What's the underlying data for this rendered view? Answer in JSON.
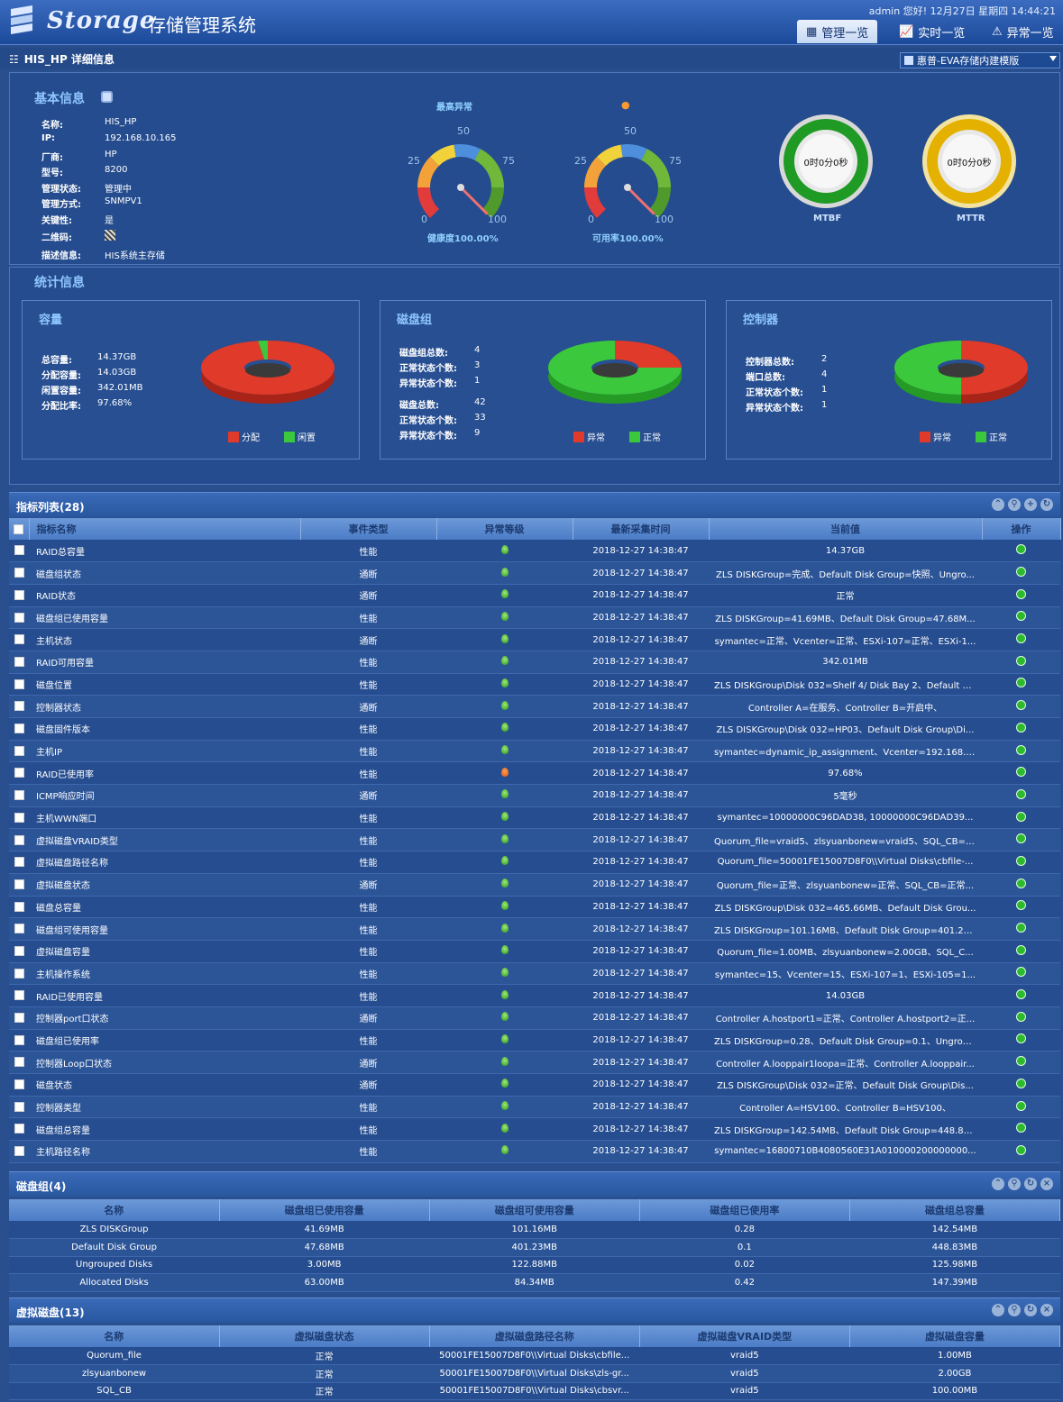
{
  "header": {
    "logo": "Storage",
    "title": "存储管理系统",
    "user_info": "admin 您好! 12月27日 星期四 14:44:21",
    "nav": [
      {
        "label": "管理一览",
        "icon": "keyboard-icon",
        "active": true
      },
      {
        "label": "实时一览",
        "icon": "line-chart-icon",
        "active": false
      },
      {
        "label": "异常一览",
        "icon": "warning-icon",
        "active": false
      }
    ]
  },
  "subbar": {
    "title": "HIS_HP 详细信息",
    "selector": "惠普-EVA存储内建模版"
  },
  "basic": {
    "title": "基本信息",
    "fields": [
      {
        "k": "名称:",
        "v": "HIS_HP"
      },
      {
        "k": "IP:",
        "v": "192.168.10.165"
      },
      {
        "k": "厂商:",
        "v": "HP"
      },
      {
        "k": "型号:",
        "v": "8200"
      },
      {
        "k": "管理状态:",
        "v": "管理中"
      },
      {
        "k": "管理方式:",
        "v": "SNMPV1"
      },
      {
        "k": "关键性:",
        "v": "是"
      },
      {
        "k": "二维码:",
        "v": ""
      },
      {
        "k": "描述信息:",
        "v": "HIS系统主存储"
      }
    ],
    "highest_alarm": "最高异常",
    "gauges": [
      {
        "label": "健康度100.00%",
        "value": 100,
        "ticks": [
          "0",
          "25",
          "50",
          "75",
          "100"
        ]
      },
      {
        "label": "可用率100.00%",
        "value": 100,
        "ticks": [
          "0",
          "25",
          "50",
          "75",
          "100"
        ]
      }
    ],
    "rings": [
      {
        "label": "MTBF",
        "text": "0时0分0秒",
        "color": "#2aa02a"
      },
      {
        "label": "MTTR",
        "text": "0时0分0秒",
        "color": "#e6b800"
      }
    ]
  },
  "stats": {
    "title": "统计信息",
    "capacity": {
      "title": "容量",
      "rows": [
        {
          "k": "总容量:",
          "v": "14.37GB"
        },
        {
          "k": "分配容量:",
          "v": "14.03GB"
        },
        {
          "k": "闲置容量:",
          "v": "342.01MB"
        },
        {
          "k": "分配比率:",
          "v": "97.68%"
        }
      ],
      "pie": [
        {
          "name": "分配",
          "value": 97.68,
          "color": "#e03a2a"
        },
        {
          "name": "闲置",
          "value": 2.32,
          "color": "#3cc83c"
        }
      ]
    },
    "diskgroup": {
      "title": "磁盘组",
      "rows": [
        {
          "k": "磁盘组总数:",
          "v": "4"
        },
        {
          "k": "正常状态个数:",
          "v": "3"
        },
        {
          "k": "异常状态个数:",
          "v": "1"
        },
        {
          "k": "磁盘总数:",
          "v": "42"
        },
        {
          "k": "正常状态个数:",
          "v": "33"
        },
        {
          "k": "异常状态个数:",
          "v": "9"
        }
      ],
      "pie": [
        {
          "name": "异常",
          "value": 25,
          "color": "#e03a2a"
        },
        {
          "name": "正常",
          "value": 75,
          "color": "#3cc83c"
        }
      ]
    },
    "controller": {
      "title": "控制器",
      "rows": [
        {
          "k": "控制器总数:",
          "v": "2"
        },
        {
          "k": "端口总数:",
          "v": "4"
        },
        {
          "k": "正常状态个数:",
          "v": "1"
        },
        {
          "k": "异常状态个数:",
          "v": "1"
        }
      ],
      "pie": [
        {
          "name": "异常",
          "value": 50,
          "color": "#e03a2a"
        },
        {
          "name": "正常",
          "value": 50,
          "color": "#3cc83c"
        }
      ]
    }
  },
  "metrics": {
    "title": "指标列表(28)",
    "columns": [
      "指标名称",
      "事件类型",
      "异常等级",
      "最新采集时间",
      "当前值",
      "操作"
    ],
    "rows": [
      [
        "RAID总容量",
        "性能",
        "g",
        "2018-12-27 14:38:47",
        "14.37GB"
      ],
      [
        "磁盘组状态",
        "通断",
        "g",
        "2018-12-27 14:38:47",
        "ZLS DISKGroup=完成、Default Disk Group=快照、Ungro..."
      ],
      [
        "RAID状态",
        "通断",
        "g",
        "2018-12-27 14:38:47",
        "正常"
      ],
      [
        "磁盘组已使用容量",
        "性能",
        "g",
        "2018-12-27 14:38:47",
        "ZLS DISKGroup=41.69MB、Default Disk Group=47.68M..."
      ],
      [
        "主机状态",
        "通断",
        "g",
        "2018-12-27 14:38:47",
        "symantec=正常、Vcenter=正常、ESXi-107=正常、ESXi-1..."
      ],
      [
        "RAID可用容量",
        "性能",
        "g",
        "2018-12-27 14:38:47",
        "342.01MB"
      ],
      [
        "磁盘位置",
        "性能",
        "g",
        "2018-12-27 14:38:47",
        "ZLS DISKGroup\\Disk 032=Shelf 4/ Disk Bay 2、Default D..."
      ],
      [
        "控制器状态",
        "通断",
        "g",
        "2018-12-27 14:38:47",
        "Controller A=在服务、Controller B=开启中、"
      ],
      [
        "磁盘固件版本",
        "性能",
        "g",
        "2018-12-27 14:38:47",
        "ZLS DISKGroup\\Disk 032=HP03、Default Disk Group\\Di..."
      ],
      [
        "主机IP",
        "性能",
        "g",
        "2018-12-27 14:38:47",
        "symantec=dynamic_ip_assignment、Vcenter=192.168.1..."
      ],
      [
        "RAID已使用率",
        "性能",
        "o",
        "2018-12-27 14:38:47",
        "97.68%"
      ],
      [
        "ICMP响应时间",
        "通断",
        "g",
        "2018-12-27 14:38:47",
        "5毫秒"
      ],
      [
        "主机WWN端口",
        "性能",
        "g",
        "2018-12-27 14:38:47",
        "symantec=10000000C96DAD38, 10000000C96DAD39..."
      ],
      [
        "虚拟磁盘VRAID类型",
        "性能",
        "g",
        "2018-12-27 14:38:47",
        "Quorum_file=vraid5、zlsyuanbonew=vraid5、SQL_CB=v..."
      ],
      [
        "虚拟磁盘路径名称",
        "性能",
        "g",
        "2018-12-27 14:38:47",
        "Quorum_file=50001FE15007D8F0\\\\Virtual Disks\\cbfile-..."
      ],
      [
        "虚拟磁盘状态",
        "通断",
        "g",
        "2018-12-27 14:38:47",
        "Quorum_file=正常、zlsyuanbonew=正常、SQL_CB=正常..."
      ],
      [
        "磁盘总容量",
        "性能",
        "g",
        "2018-12-27 14:38:47",
        "ZLS DISKGroup\\Disk 032=465.66MB、Default Disk Grou..."
      ],
      [
        "磁盘组可使用容量",
        "性能",
        "g",
        "2018-12-27 14:38:47",
        "ZLS DISKGroup=101.16MB、Default Disk Group=401.23..."
      ],
      [
        "虚拟磁盘容量",
        "性能",
        "g",
        "2018-12-27 14:38:47",
        "Quorum_file=1.00MB、zlsyuanbonew=2.00GB、SQL_C..."
      ],
      [
        "主机操作系统",
        "性能",
        "g",
        "2018-12-27 14:38:47",
        "symantec=15、Vcenter=15、ESXi-107=1、ESXi-105=1..."
      ],
      [
        "RAID已使用容量",
        "性能",
        "g",
        "2018-12-27 14:38:47",
        "14.03GB"
      ],
      [
        "控制器port口状态",
        "通断",
        "g",
        "2018-12-27 14:38:47",
        "Controller A.hostport1=正常、Controller A.hostport2=正..."
      ],
      [
        "磁盘组已使用率",
        "性能",
        "g",
        "2018-12-27 14:38:47",
        "ZLS DISKGroup=0.28、Default Disk Group=0.1、Ungrou..."
      ],
      [
        "控制器Loop口状态",
        "通断",
        "g",
        "2018-12-27 14:38:47",
        "Controller A.looppair1loopa=正常、Controller A.looppair..."
      ],
      [
        "磁盘状态",
        "通断",
        "g",
        "2018-12-27 14:38:47",
        "ZLS DISKGroup\\Disk 032=正常、Default Disk Group\\Dis..."
      ],
      [
        "控制器类型",
        "性能",
        "g",
        "2018-12-27 14:38:47",
        "Controller A=HSV100、Controller B=HSV100、"
      ],
      [
        "磁盘组总容量",
        "性能",
        "g",
        "2018-12-27 14:38:47",
        "ZLS DISKGroup=142.54MB、Default Disk Group=448.83..."
      ],
      [
        "主机路径名称",
        "性能",
        "g",
        "2018-12-27 14:38:47",
        "symantec=16800710B4080560E31A010000200000000..."
      ]
    ]
  },
  "diskgroups": {
    "title": "磁盘组(4)",
    "columns": [
      "名称",
      "磁盘组已使用容量",
      "磁盘组可使用容量",
      "磁盘组已使用率",
      "磁盘组总容量"
    ],
    "rows": [
      [
        "ZLS DISKGroup",
        "41.69MB",
        "101.16MB",
        "0.28",
        "142.54MB"
      ],
      [
        "Default Disk Group",
        "47.68MB",
        "401.23MB",
        "0.1",
        "448.83MB"
      ],
      [
        "Ungrouped Disks",
        "3.00MB",
        "122.88MB",
        "0.02",
        "125.98MB"
      ],
      [
        "Allocated Disks",
        "63.00MB",
        "84.34MB",
        "0.42",
        "147.39MB"
      ]
    ]
  },
  "vdisks": {
    "title": "虚拟磁盘(13)",
    "columns": [
      "名称",
      "虚拟磁盘状态",
      "虚拟磁盘路径名称",
      "虚拟磁盘VRAID类型",
      "虚拟磁盘容量"
    ],
    "rows": [
      [
        "Quorum_file",
        "正常",
        "50001FE15007D8F0\\\\Virtual Disks\\cbfile...",
        "vraid5",
        "1.00MB"
      ],
      [
        "zlsyuanbonew",
        "正常",
        "50001FE15007D8F0\\\\Virtual Disks\\zls-gr...",
        "vraid5",
        "2.00GB"
      ],
      [
        "SQL_CB",
        "正常",
        "50001FE15007D8F0\\\\Virtual Disks\\cbsvr...",
        "vraid5",
        "100.00MB"
      ]
    ]
  }
}
